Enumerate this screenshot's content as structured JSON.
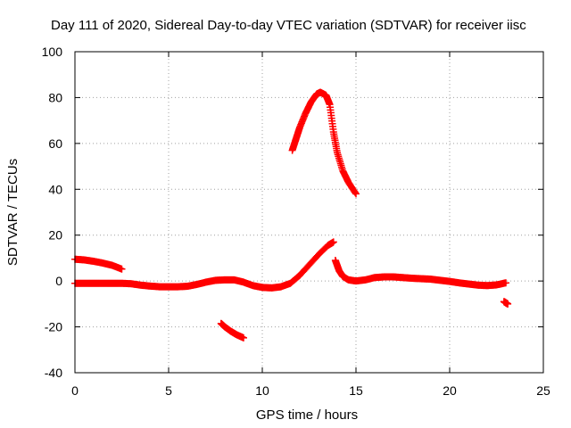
{
  "chart_data": {
    "type": "scatter",
    "title": "Day 111 of 2020, Sidereal Day-to-day VTEC variation (SDTVAR) for receiver iisc",
    "xlabel": "GPS time / hours",
    "ylabel": "SDTVAR / TECUs",
    "xlim": [
      0,
      25
    ],
    "ylim": [
      -40,
      100
    ],
    "xticks": [
      0,
      5,
      10,
      15,
      20,
      25
    ],
    "yticks": [
      -40,
      -20,
      0,
      20,
      40,
      60,
      80,
      100
    ],
    "xtick_labels": [
      "0",
      "5",
      "10",
      "15",
      "20",
      "25"
    ],
    "ytick_labels": [
      "-40",
      "-20",
      "0",
      "20",
      "40",
      "60",
      "80",
      "100"
    ],
    "grid": true,
    "marker": "plus",
    "color": "#ff0000",
    "series": [
      {
        "x": [
          0.0,
          0.5,
          1.0,
          1.5,
          2.0,
          2.5
        ],
        "y": [
          9.5,
          9.2,
          8.6,
          7.8,
          6.8,
          5.2
        ]
      },
      {
        "x": [
          0.0,
          0.5,
          1.0,
          1.5,
          2.0,
          2.5,
          3.0,
          3.5,
          4.0,
          4.5,
          5.0,
          5.5,
          6.0,
          6.5,
          7.0,
          7.5,
          8.0,
          8.5,
          9.0,
          9.5,
          10.0,
          10.5,
          11.0,
          11.5,
          12.0,
          12.5,
          13.0,
          13.5,
          13.8
        ],
        "y": [
          -1.0,
          -1.0,
          -1.0,
          -1.0,
          -1.0,
          -1.0,
          -1.2,
          -1.8,
          -2.2,
          -2.5,
          -2.5,
          -2.5,
          -2.3,
          -1.5,
          -0.5,
          0.3,
          0.5,
          0.5,
          -0.5,
          -2.0,
          -2.8,
          -3.0,
          -2.5,
          -1.0,
          2.5,
          7.0,
          11.5,
          15.5,
          17.0
        ]
      },
      {
        "x": [
          13.9,
          14.1,
          14.3,
          14.6,
          15.0,
          15.5,
          16.0,
          16.5,
          17.0,
          17.5,
          18.0,
          18.5,
          19.0,
          19.5,
          20.0,
          20.5,
          21.0,
          21.5,
          22.0,
          22.5,
          23.0
        ],
        "y": [
          9.0,
          4.5,
          2.0,
          0.5,
          0.0,
          0.5,
          1.5,
          1.8,
          1.8,
          1.5,
          1.2,
          1.0,
          0.8,
          0.3,
          -0.2,
          -0.8,
          -1.3,
          -1.8,
          -2.0,
          -1.7,
          -0.8
        ]
      },
      {
        "x": [
          7.8,
          8.0,
          8.3,
          8.6,
          9.0
        ],
        "y": [
          -18.5,
          -20.0,
          -21.8,
          -23.3,
          -24.8
        ]
      },
      {
        "x": [
          11.6,
          11.8,
          12.0,
          12.3,
          12.6,
          12.9,
          13.1,
          13.4,
          13.6,
          13.8,
          14.0,
          14.3,
          14.6,
          15.0
        ],
        "y": [
          57.0,
          62.0,
          67.0,
          73.0,
          78.0,
          81.5,
          82.3,
          81.0,
          77.0,
          65.0,
          56.0,
          48.0,
          43.0,
          38.0
        ]
      },
      {
        "x": [
          22.9,
          23.0,
          23.1
        ],
        "y": [
          -9.0,
          -9.5,
          -10.0
        ]
      }
    ]
  }
}
